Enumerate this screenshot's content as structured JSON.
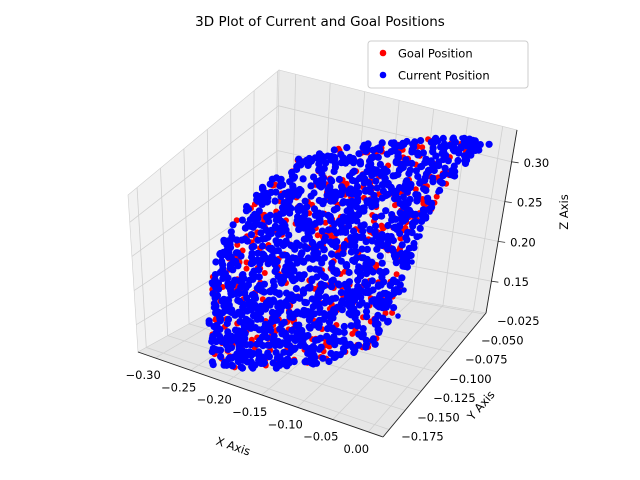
{
  "chart_data": {
    "type": "scatter",
    "title": "3D Plot of Current and Goal Positions",
    "xlabel": "X Axis",
    "ylabel": "Y Axis",
    "zlabel": "Z Axis",
    "xlim": [
      -0.32,
      0.02
    ],
    "ylim": [
      -0.185,
      -0.01
    ],
    "zlim": [
      0.11,
      0.34
    ],
    "x_ticks": [
      "−0.30",
      "−0.25",
      "−0.20",
      "−0.15",
      "−0.10",
      "−0.05",
      "0.00"
    ],
    "y_ticks": [
      "−0.175",
      "−0.150",
      "−0.125",
      "−0.100",
      "−0.075",
      "−0.050",
      "−0.025"
    ],
    "z_ticks": [
      "0.15",
      "0.20",
      "0.25",
      "0.30"
    ],
    "grid": true,
    "legend_position": "top-right",
    "series": [
      {
        "name": "Goal Position",
        "color": "#ff0000"
      },
      {
        "name": "Current Position",
        "color": "#0000ff"
      }
    ]
  }
}
